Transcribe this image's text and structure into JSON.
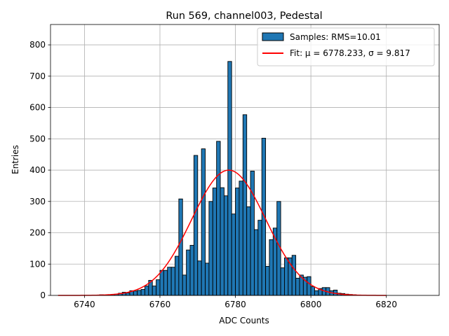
{
  "chart_data": {
    "type": "bar",
    "title": "Run 569, channel003, Pedestal",
    "xlabel": "ADC Counts",
    "ylabel": "Entries",
    "xlim": [
      6731,
      6834
    ],
    "ylim": [
      0,
      865
    ],
    "xticks": [
      6740,
      6760,
      6780,
      6800,
      6820
    ],
    "yticks": [
      0,
      100,
      200,
      300,
      400,
      500,
      600,
      700,
      800
    ],
    "grid": true,
    "legend_position": "top-right",
    "bin_width": 1,
    "histogram": {
      "name": "Samples: RMS=10.01",
      "color": "#1f77b4",
      "edge_color": "#000000",
      "bins": [
        [
          6744,
          2
        ],
        [
          6745,
          1
        ],
        [
          6746,
          2
        ],
        [
          6747,
          3
        ],
        [
          6748,
          4
        ],
        [
          6749,
          7
        ],
        [
          6750,
          10
        ],
        [
          6751,
          8
        ],
        [
          6752,
          15
        ],
        [
          6753,
          14
        ],
        [
          6754,
          16
        ],
        [
          6755,
          19
        ],
        [
          6756,
          30
        ],
        [
          6757,
          48
        ],
        [
          6758,
          30
        ],
        [
          6759,
          50
        ],
        [
          6760,
          80
        ],
        [
          6761,
          80
        ],
        [
          6762,
          90
        ],
        [
          6763,
          90
        ],
        [
          6764,
          125
        ],
        [
          6765,
          308
        ],
        [
          6766,
          65
        ],
        [
          6767,
          145
        ],
        [
          6768,
          160
        ],
        [
          6769,
          447
        ],
        [
          6770,
          110
        ],
        [
          6771,
          468
        ],
        [
          6772,
          103
        ],
        [
          6773,
          300
        ],
        [
          6774,
          343
        ],
        [
          6775,
          492
        ],
        [
          6776,
          344
        ],
        [
          6777,
          318
        ],
        [
          6778,
          747
        ],
        [
          6779,
          260
        ],
        [
          6780,
          343
        ],
        [
          6781,
          365
        ],
        [
          6782,
          577
        ],
        [
          6783,
          283
        ],
        [
          6784,
          397
        ],
        [
          6785,
          210
        ],
        [
          6786,
          240
        ],
        [
          6787,
          502
        ],
        [
          6788,
          93
        ],
        [
          6789,
          178
        ],
        [
          6790,
          215
        ],
        [
          6791,
          300
        ],
        [
          6792,
          88
        ],
        [
          6793,
          120
        ],
        [
          6794,
          120
        ],
        [
          6795,
          128
        ],
        [
          6796,
          55
        ],
        [
          6797,
          65
        ],
        [
          6798,
          58
        ],
        [
          6799,
          60
        ],
        [
          6800,
          28
        ],
        [
          6801,
          15
        ],
        [
          6802,
          22
        ],
        [
          6803,
          25
        ],
        [
          6804,
          25
        ],
        [
          6805,
          15
        ],
        [
          6806,
          17
        ],
        [
          6807,
          7
        ],
        [
          6808,
          6
        ],
        [
          6809,
          4
        ],
        [
          6810,
          3
        ],
        [
          6811,
          2
        ],
        [
          6812,
          1
        ],
        [
          6813,
          1
        ]
      ]
    },
    "fit": {
      "name": "Fit: μ = 6778.233, σ = 9.817",
      "type": "gaussian",
      "color": "#ff0000",
      "mu": 6778.233,
      "sigma": 9.817,
      "amplitude": 400,
      "x_range": [
        6733,
        6820
      ]
    }
  }
}
